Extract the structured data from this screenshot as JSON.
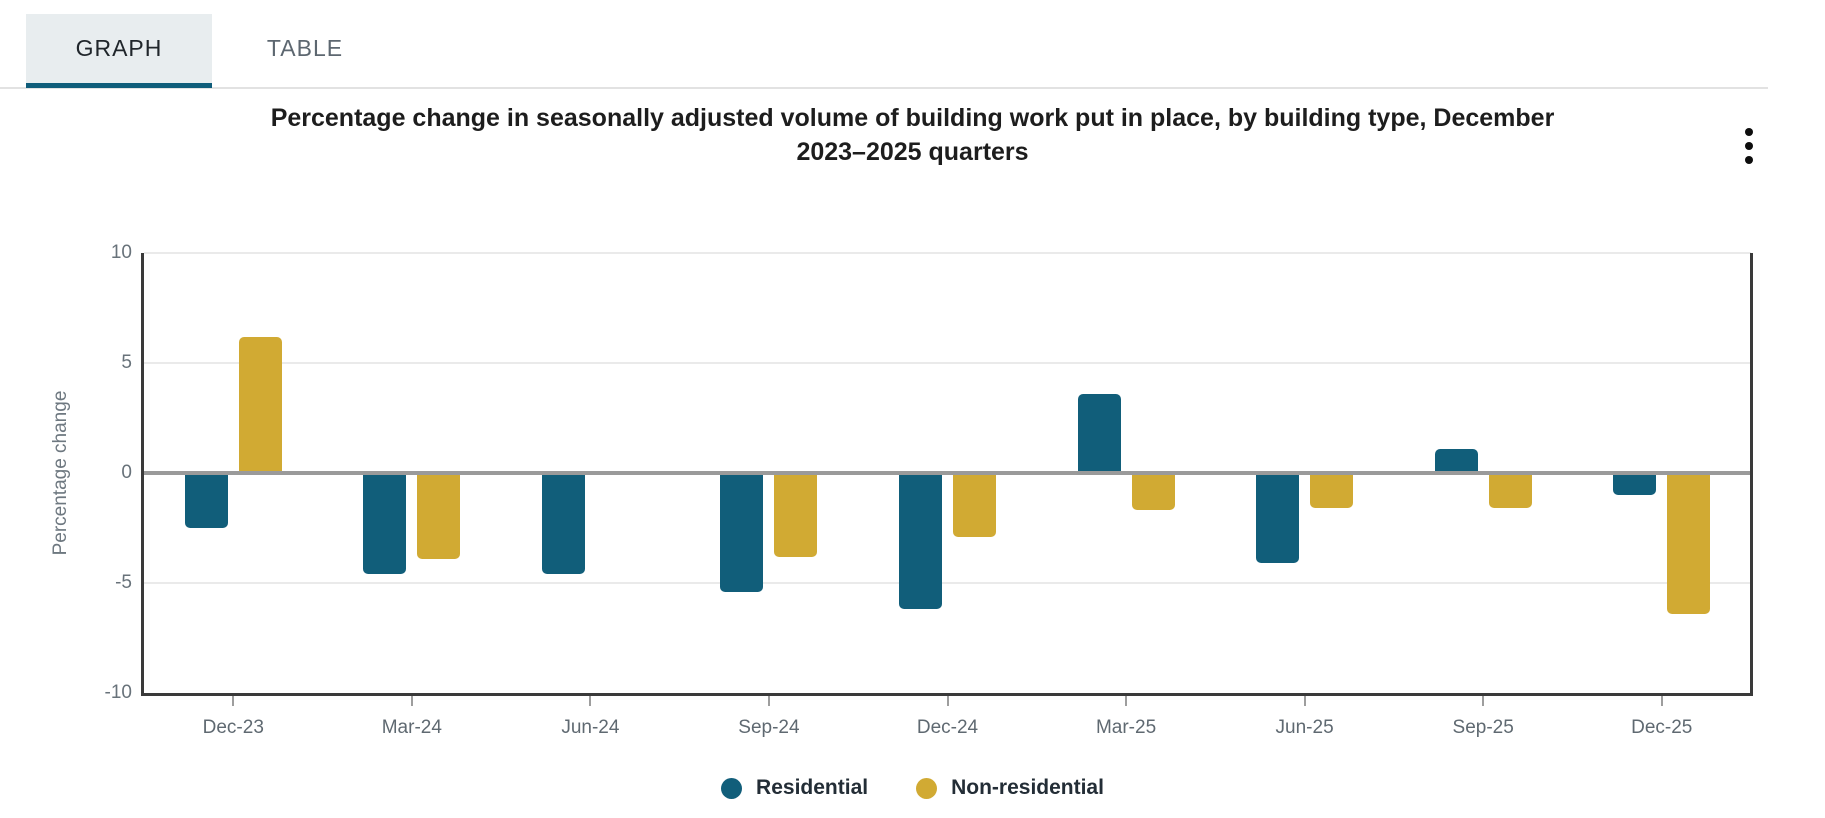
{
  "tabs": {
    "graph": "GRAPH",
    "table": "TABLE"
  },
  "header": {
    "title_line1": "Percentage change in seasonally adjusted volume of building work put in place, by building type, December",
    "title_line2": "2023–2025 quarters",
    "menu_icon": "kebab-vertical-icon"
  },
  "chart_data": {
    "type": "bar",
    "title": "Percentage change in seasonally adjusted volume of building work put in place, by building type, December 2023–2025 quarters",
    "categories": [
      "Dec-23",
      "Mar-24",
      "Jun-24",
      "Sep-24",
      "Dec-24",
      "Mar-25",
      "Jun-25",
      "Sep-25",
      "Dec-25"
    ],
    "series": [
      {
        "name": "Residential",
        "color": "#115e7a",
        "values": [
          -2.5,
          -4.6,
          -4.6,
          -5.4,
          -6.2,
          3.6,
          -4.1,
          1.1,
          -1.0
        ]
      },
      {
        "name": "Non-residential",
        "color": "#d1aa33",
        "values": [
          6.2,
          -3.9,
          0,
          -3.8,
          -2.9,
          -1.7,
          -1.6,
          -1.6,
          -6.4
        ]
      }
    ],
    "xlabel": "",
    "ylabel": "Percentage change",
    "ylim": [
      -10,
      10
    ],
    "yticks": [
      10,
      5,
      0,
      -5,
      -10
    ],
    "grid": true,
    "legend_position": "bottom"
  },
  "colors": {
    "residential": "#115e7a",
    "non_residential": "#d1aa33",
    "zero_line": "#9a9a9a",
    "gridline": "#eaeaea",
    "axis": "#3a3a3a",
    "tab_active_bg": "#e8edef",
    "tab_underline": "#0f5d7a"
  }
}
